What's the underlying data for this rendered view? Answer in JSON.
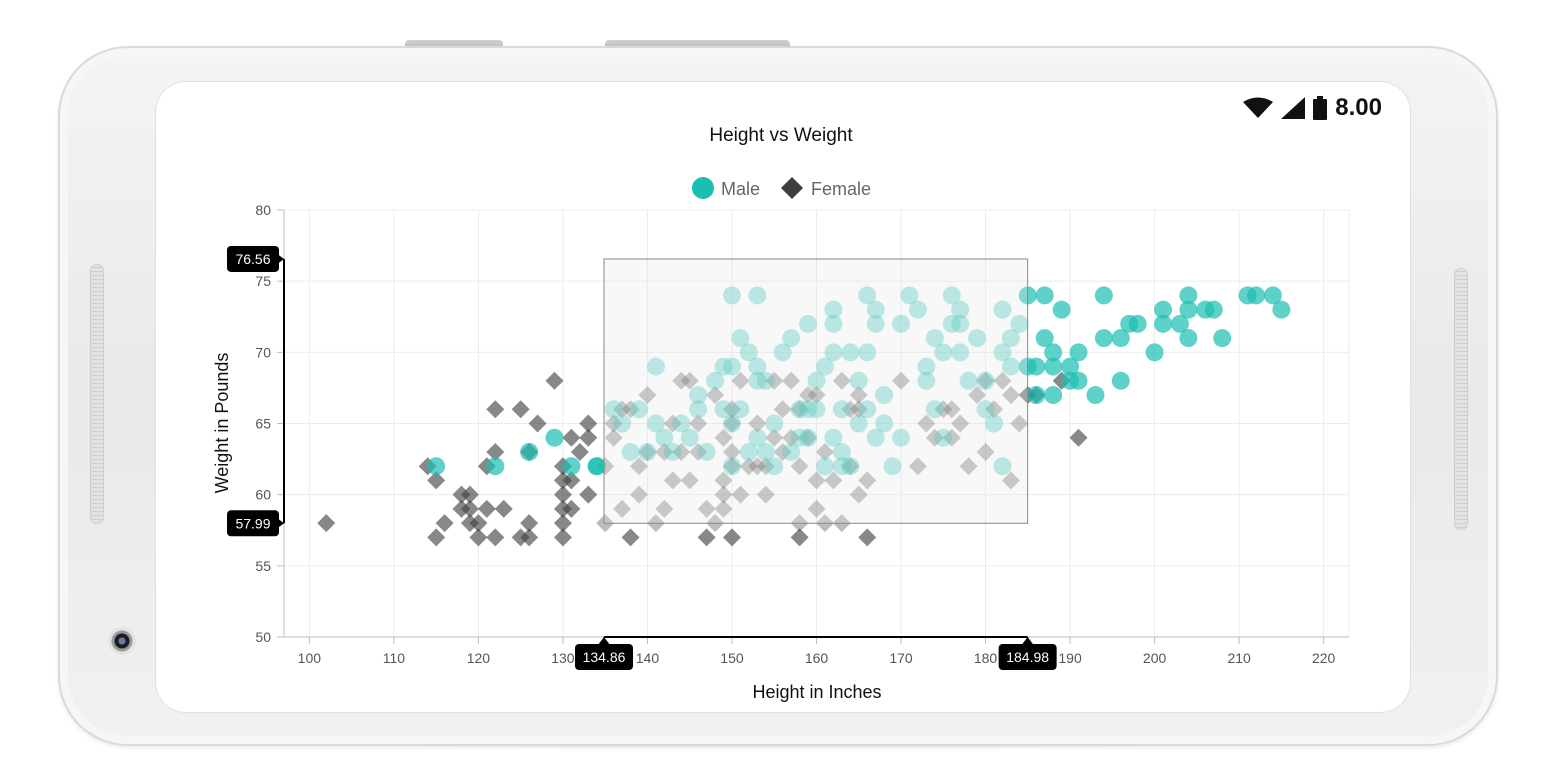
{
  "status_bar": {
    "time": "8.00",
    "icons": [
      "wifi-icon",
      "signal-icon",
      "battery-icon"
    ]
  },
  "chart_data": {
    "type": "scatter",
    "title": "Height vs Weight",
    "xlabel": "Height in Inches",
    "ylabel": "Weight in Pounds",
    "xlim": [
      97,
      223
    ],
    "ylim": [
      50,
      80
    ],
    "xticks": [
      100,
      110,
      120,
      130,
      140,
      150,
      160,
      170,
      180,
      190,
      200,
      210,
      220
    ],
    "yticks": [
      50,
      55,
      60,
      65,
      70,
      75,
      80
    ],
    "grid": true,
    "legend": {
      "position": "top-center",
      "entries": [
        "Male",
        "Female"
      ]
    },
    "series": [
      {
        "name": "Male",
        "marker": "circle",
        "color": "#1abfb1",
        "points": [
          [
            115,
            62
          ],
          [
            122,
            62
          ],
          [
            126,
            63
          ],
          [
            129,
            64
          ],
          [
            131,
            62
          ],
          [
            134,
            62
          ],
          [
            136,
            66
          ],
          [
            137,
            65
          ],
          [
            138,
            63
          ],
          [
            139,
            66
          ],
          [
            140,
            63
          ],
          [
            141,
            65
          ],
          [
            141,
            69
          ],
          [
            142,
            64
          ],
          [
            143,
            63
          ],
          [
            144,
            65
          ],
          [
            145,
            64
          ],
          [
            146,
            66
          ],
          [
            146,
            67
          ],
          [
            147,
            63
          ],
          [
            148,
            68
          ],
          [
            149,
            69
          ],
          [
            149,
            66
          ],
          [
            150,
            69
          ],
          [
            150,
            74
          ],
          [
            150,
            62
          ],
          [
            150,
            65
          ],
          [
            151,
            71
          ],
          [
            151,
            66
          ],
          [
            152,
            70
          ],
          [
            152,
            63
          ],
          [
            153,
            69
          ],
          [
            153,
            64
          ],
          [
            154,
            68
          ],
          [
            154,
            63
          ],
          [
            155,
            62
          ],
          [
            155,
            65
          ],
          [
            156,
            70
          ],
          [
            157,
            71
          ],
          [
            157,
            63
          ],
          [
            158,
            64
          ],
          [
            158,
            66
          ],
          [
            159,
            64
          ],
          [
            159,
            72
          ],
          [
            160,
            66
          ],
          [
            160,
            68
          ],
          [
            161,
            62
          ],
          [
            161,
            69
          ],
          [
            162,
            70
          ],
          [
            162,
            72
          ],
          [
            162,
            73
          ],
          [
            162,
            64
          ],
          [
            163,
            66
          ],
          [
            163,
            63
          ],
          [
            164,
            70
          ],
          [
            164,
            62
          ],
          [
            165,
            68
          ],
          [
            165,
            65
          ],
          [
            166,
            70
          ],
          [
            166,
            74
          ],
          [
            166,
            66
          ],
          [
            167,
            73
          ],
          [
            167,
            64
          ],
          [
            167,
            72
          ],
          [
            168,
            67
          ],
          [
            168,
            65
          ],
          [
            169,
            62
          ],
          [
            170,
            64
          ],
          [
            170,
            72
          ],
          [
            171,
            74
          ],
          [
            172,
            73
          ],
          [
            173,
            69
          ],
          [
            173,
            68
          ],
          [
            174,
            71
          ],
          [
            174,
            66
          ],
          [
            175,
            70
          ],
          [
            175,
            64
          ],
          [
            176,
            74
          ],
          [
            176,
            72
          ],
          [
            177,
            72
          ],
          [
            177,
            73
          ],
          [
            177,
            70
          ],
          [
            178,
            68
          ],
          [
            179,
            71
          ],
          [
            180,
            66
          ],
          [
            180,
            68
          ],
          [
            181,
            65
          ],
          [
            182,
            73
          ],
          [
            182,
            70
          ],
          [
            182,
            62
          ],
          [
            183,
            71
          ],
          [
            183,
            69
          ],
          [
            184,
            72
          ],
          [
            134,
            62
          ],
          [
            153,
            74
          ],
          [
            153,
            68
          ],
          [
            159,
            66
          ],
          [
            163,
            62
          ],
          [
            185,
            74
          ],
          [
            185,
            69
          ],
          [
            186,
            67
          ],
          [
            186,
            69
          ],
          [
            187,
            74
          ],
          [
            187,
            71
          ],
          [
            188,
            70
          ],
          [
            188,
            69
          ],
          [
            188,
            67
          ],
          [
            189,
            73
          ],
          [
            190,
            69
          ],
          [
            190,
            68
          ],
          [
            191,
            70
          ],
          [
            191,
            68
          ],
          [
            193,
            67
          ],
          [
            194,
            74
          ],
          [
            194,
            71
          ],
          [
            196,
            71
          ],
          [
            196,
            68
          ],
          [
            197,
            72
          ],
          [
            198,
            72
          ],
          [
            200,
            70
          ],
          [
            201,
            73
          ],
          [
            201,
            72
          ],
          [
            203,
            72
          ],
          [
            204,
            74
          ],
          [
            204,
            73
          ],
          [
            204,
            71
          ],
          [
            206,
            73
          ],
          [
            207,
            73
          ],
          [
            208,
            71
          ],
          [
            211,
            74
          ],
          [
            212,
            74
          ],
          [
            214,
            74
          ],
          [
            215,
            73
          ]
        ]
      },
      {
        "name": "Female",
        "marker": "diamond",
        "color": "#3f3f3f",
        "points": [
          [
            102,
            58
          ],
          [
            114,
            62
          ],
          [
            115,
            61
          ],
          [
            115,
            57
          ],
          [
            116,
            58
          ],
          [
            118,
            60
          ],
          [
            118,
            59
          ],
          [
            119,
            60
          ],
          [
            119,
            58
          ],
          [
            119,
            59
          ],
          [
            120,
            58
          ],
          [
            120,
            57
          ],
          [
            121,
            62
          ],
          [
            121,
            59
          ],
          [
            122,
            66
          ],
          [
            122,
            57
          ],
          [
            122,
            63
          ],
          [
            123,
            59
          ],
          [
            125,
            66
          ],
          [
            125,
            57
          ],
          [
            126,
            58
          ],
          [
            126,
            57
          ],
          [
            126,
            63
          ],
          [
            127,
            65
          ],
          [
            129,
            68
          ],
          [
            130,
            62
          ],
          [
            130,
            61
          ],
          [
            130,
            60
          ],
          [
            130,
            59
          ],
          [
            130,
            58
          ],
          [
            130,
            57
          ],
          [
            131,
            64
          ],
          [
            131,
            61
          ],
          [
            131,
            59
          ],
          [
            132,
            63
          ],
          [
            133,
            64
          ],
          [
            133,
            65
          ],
          [
            133,
            60
          ],
          [
            135,
            58
          ],
          [
            135,
            62
          ],
          [
            136,
            64
          ],
          [
            136,
            65
          ],
          [
            137,
            59
          ],
          [
            137,
            66
          ],
          [
            138,
            66
          ],
          [
            138,
            57
          ],
          [
            139,
            62
          ],
          [
            139,
            60
          ],
          [
            140,
            67
          ],
          [
            140,
            63
          ],
          [
            141,
            58
          ],
          [
            142,
            59
          ],
          [
            142,
            63
          ],
          [
            143,
            65
          ],
          [
            143,
            61
          ],
          [
            144,
            68
          ],
          [
            144,
            63
          ],
          [
            145,
            68
          ],
          [
            145,
            61
          ],
          [
            146,
            65
          ],
          [
            146,
            63
          ],
          [
            147,
            57
          ],
          [
            147,
            59
          ],
          [
            148,
            67
          ],
          [
            148,
            58
          ],
          [
            149,
            59
          ],
          [
            149,
            64
          ],
          [
            149,
            61
          ],
          [
            149,
            60
          ],
          [
            150,
            57
          ],
          [
            150,
            66
          ],
          [
            150,
            65
          ],
          [
            150,
            63
          ],
          [
            150,
            62
          ],
          [
            151,
            68
          ],
          [
            151,
            60
          ],
          [
            152,
            62
          ],
          [
            153,
            62
          ],
          [
            153,
            65
          ],
          [
            154,
            62
          ],
          [
            154,
            60
          ],
          [
            155,
            68
          ],
          [
            155,
            64
          ],
          [
            156,
            66
          ],
          [
            156,
            63
          ],
          [
            157,
            68
          ],
          [
            157,
            64
          ],
          [
            158,
            57
          ],
          [
            158,
            58
          ],
          [
            158,
            62
          ],
          [
            158,
            66
          ],
          [
            159,
            64
          ],
          [
            159,
            67
          ],
          [
            160,
            59
          ],
          [
            160,
            67
          ],
          [
            160,
            61
          ],
          [
            161,
            63
          ],
          [
            161,
            58
          ],
          [
            162,
            61
          ],
          [
            163,
            58
          ],
          [
            163,
            68
          ],
          [
            164,
            66
          ],
          [
            164,
            62
          ],
          [
            165,
            60
          ],
          [
            165,
            66
          ],
          [
            165,
            67
          ],
          [
            166,
            57
          ],
          [
            166,
            61
          ],
          [
            170,
            68
          ],
          [
            172,
            62
          ],
          [
            173,
            65
          ],
          [
            174,
            64
          ],
          [
            175,
            66
          ],
          [
            176,
            66
          ],
          [
            176,
            64
          ],
          [
            177,
            65
          ],
          [
            178,
            62
          ],
          [
            179,
            67
          ],
          [
            180,
            68
          ],
          [
            180,
            63
          ],
          [
            181,
            66
          ],
          [
            182,
            68
          ],
          [
            183,
            61
          ],
          [
            183,
            67
          ],
          [
            184,
            65
          ],
          [
            185,
            67
          ],
          [
            186,
            67
          ],
          [
            189,
            68
          ],
          [
            191,
            64
          ]
        ]
      }
    ],
    "selection": {
      "x_start": 134.86,
      "x_end": 184.98,
      "y_start": 57.99,
      "y_end": 76.56,
      "labels": {
        "x_start": "134.86",
        "x_end": "184.98",
        "y_start": "57.99",
        "y_end": "76.56"
      }
    }
  }
}
